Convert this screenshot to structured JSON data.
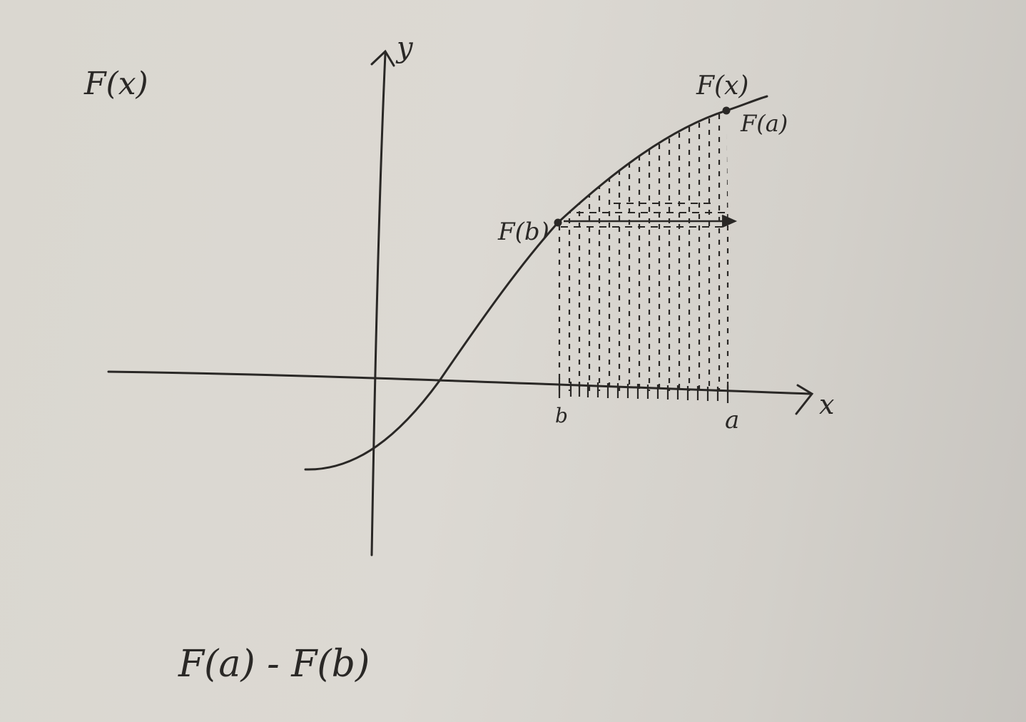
{
  "labels": {
    "corner_title": "F(x)",
    "y_axis": "y",
    "x_axis": "x",
    "curve": "F(x)",
    "point_a_value": "F(a)",
    "point_b_value": "F(b)",
    "tick_b": "b",
    "tick_a": "a",
    "expression": "F(a) - F(b)"
  },
  "colors": {
    "ink": "#2a2826",
    "paper": "#dad7d0"
  }
}
